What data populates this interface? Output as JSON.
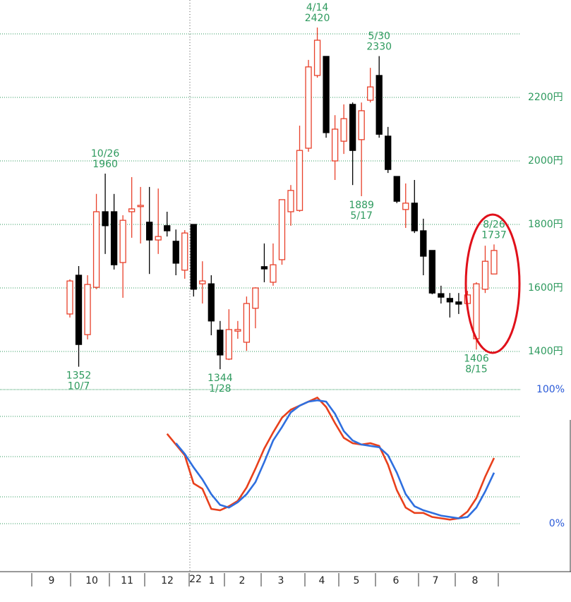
{
  "chart_data": [
    {
      "type": "candlestick",
      "open": [
        1518,
        1640,
        1453,
        1602,
        1840,
        1840,
        1680,
        1840,
        1856,
        1807,
        1751,
        1796,
        1747,
        1656,
        1800,
        1613,
        1613,
        1467,
        1376,
        1464,
        1429,
        1536,
        1667,
        1618,
        1689,
        1840,
        1844,
        2040,
        2269,
        2329,
        2000,
        2062,
        2178,
        2067,
        2191,
        2269,
        2078,
        1951,
        1847,
        1867,
        1780,
        1718,
        1582,
        1567,
        1556,
        1551,
        1440,
        1596,
        1644
      ],
      "high": [
        1627,
        1669,
        1640,
        1896,
        1960,
        1896,
        1829,
        1949,
        1918,
        1918,
        1913,
        1840,
        1784,
        1782,
        1800,
        1684,
        1640,
        1496,
        1533,
        1496,
        1573,
        1602,
        1740,
        1740,
        1878,
        1924,
        2111,
        2318,
        2420,
        2329,
        2144,
        2178,
        2184,
        2184,
        2293,
        2330,
        2107,
        1951,
        1929,
        1940,
        1818,
        1718,
        1607,
        1584,
        1584,
        1591,
        1618,
        1733,
        1737
      ],
      "low": [
        1507,
        1352,
        1438,
        1596,
        1707,
        1658,
        1569,
        1758,
        1740,
        1644,
        1707,
        1762,
        1640,
        1629,
        1573,
        1551,
        1451,
        1344,
        1373,
        1440,
        1402,
        1473,
        1618,
        1607,
        1673,
        1796,
        1840,
        2029,
        2262,
        2073,
        1940,
        2022,
        1924,
        1889,
        2184,
        2073,
        1962,
        1867,
        1789,
        1773,
        1640,
        1580,
        1551,
        1507,
        1518,
        1529,
        1406,
        1584,
        1644
      ],
      "close": [
        1622,
        1422,
        1611,
        1840,
        1796,
        1673,
        1813,
        1849,
        1860,
        1751,
        1762,
        1780,
        1678,
        1773,
        1596,
        1622,
        1496,
        1389,
        1469,
        1469,
        1551,
        1600,
        1660,
        1673,
        1878,
        1907,
        2033,
        2296,
        2380,
        2089,
        2100,
        2133,
        2033,
        2158,
        2233,
        2084,
        1973,
        1873,
        1867,
        1780,
        1700,
        1584,
        1571,
        1556,
        1549,
        1578,
        1613,
        1684,
        1718
      ],
      "up_color": "#e8402a",
      "down_color": "#000000",
      "ylim": [
        1290,
        2500
      ],
      "yticks": [
        {
          "value": 1400,
          "label": "1400円"
        },
        {
          "value": 1600,
          "label": "1600円"
        },
        {
          "value": 1800,
          "label": "1800円"
        },
        {
          "value": 2000,
          "label": "2000円"
        },
        {
          "value": 2200,
          "label": "2200円"
        },
        {
          "value": 2400,
          "label": null
        }
      ],
      "grid": true,
      "annotations": [
        {
          "date": "10/26",
          "price": 1960
        },
        {
          "date": "10/7",
          "price": 1352
        },
        {
          "date": "1/28",
          "price": 1344
        },
        {
          "date": "4/14",
          "price": 2420
        },
        {
          "date": "5/30",
          "price": 2330
        },
        {
          "date": "5/17",
          "price": 1889
        },
        {
          "date": "8/26",
          "price": 1737
        },
        {
          "date": "8/15",
          "price": 1406
        }
      ],
      "year_label": "22",
      "months": [
        "9",
        "10",
        "11",
        "12",
        "1",
        "2",
        "3",
        "4",
        "5",
        "6",
        "7",
        "8"
      ]
    },
    {
      "type": "line",
      "ylim": [
        -35,
        100
      ],
      "yticks": [
        {
          "value": 0,
          "label": "0%"
        },
        {
          "value": 20,
          "label": null
        },
        {
          "value": 50,
          "label": null
        },
        {
          "value": 80,
          "label": null
        },
        {
          "value": 100,
          "label": "100%"
        }
      ],
      "grid": true,
      "series": [
        {
          "color": "#e8401c",
          "values": [
            null,
            null,
            null,
            null,
            null,
            null,
            null,
            null,
            null,
            null,
            null,
            67,
            59,
            51,
            30,
            26,
            11,
            10,
            13,
            17,
            27,
            41,
            56,
            68,
            79,
            85,
            88,
            91,
            94,
            87,
            75,
            64,
            60,
            59,
            60,
            58,
            44,
            25,
            12,
            8,
            8,
            5,
            4,
            3,
            4,
            9,
            19,
            35,
            49
          ]
        },
        {
          "color": "#2f6fdf",
          "values": [
            null,
            null,
            null,
            null,
            null,
            null,
            null,
            null,
            null,
            null,
            null,
            null,
            60,
            52,
            42,
            33,
            22,
            14,
            12,
            16,
            22,
            31,
            46,
            62,
            72,
            83,
            88,
            91,
            92,
            91,
            82,
            69,
            62,
            59,
            58,
            57,
            51,
            38,
            22,
            13,
            10,
            8,
            6,
            5,
            4,
            5,
            12,
            24,
            38
          ]
        }
      ]
    }
  ]
}
